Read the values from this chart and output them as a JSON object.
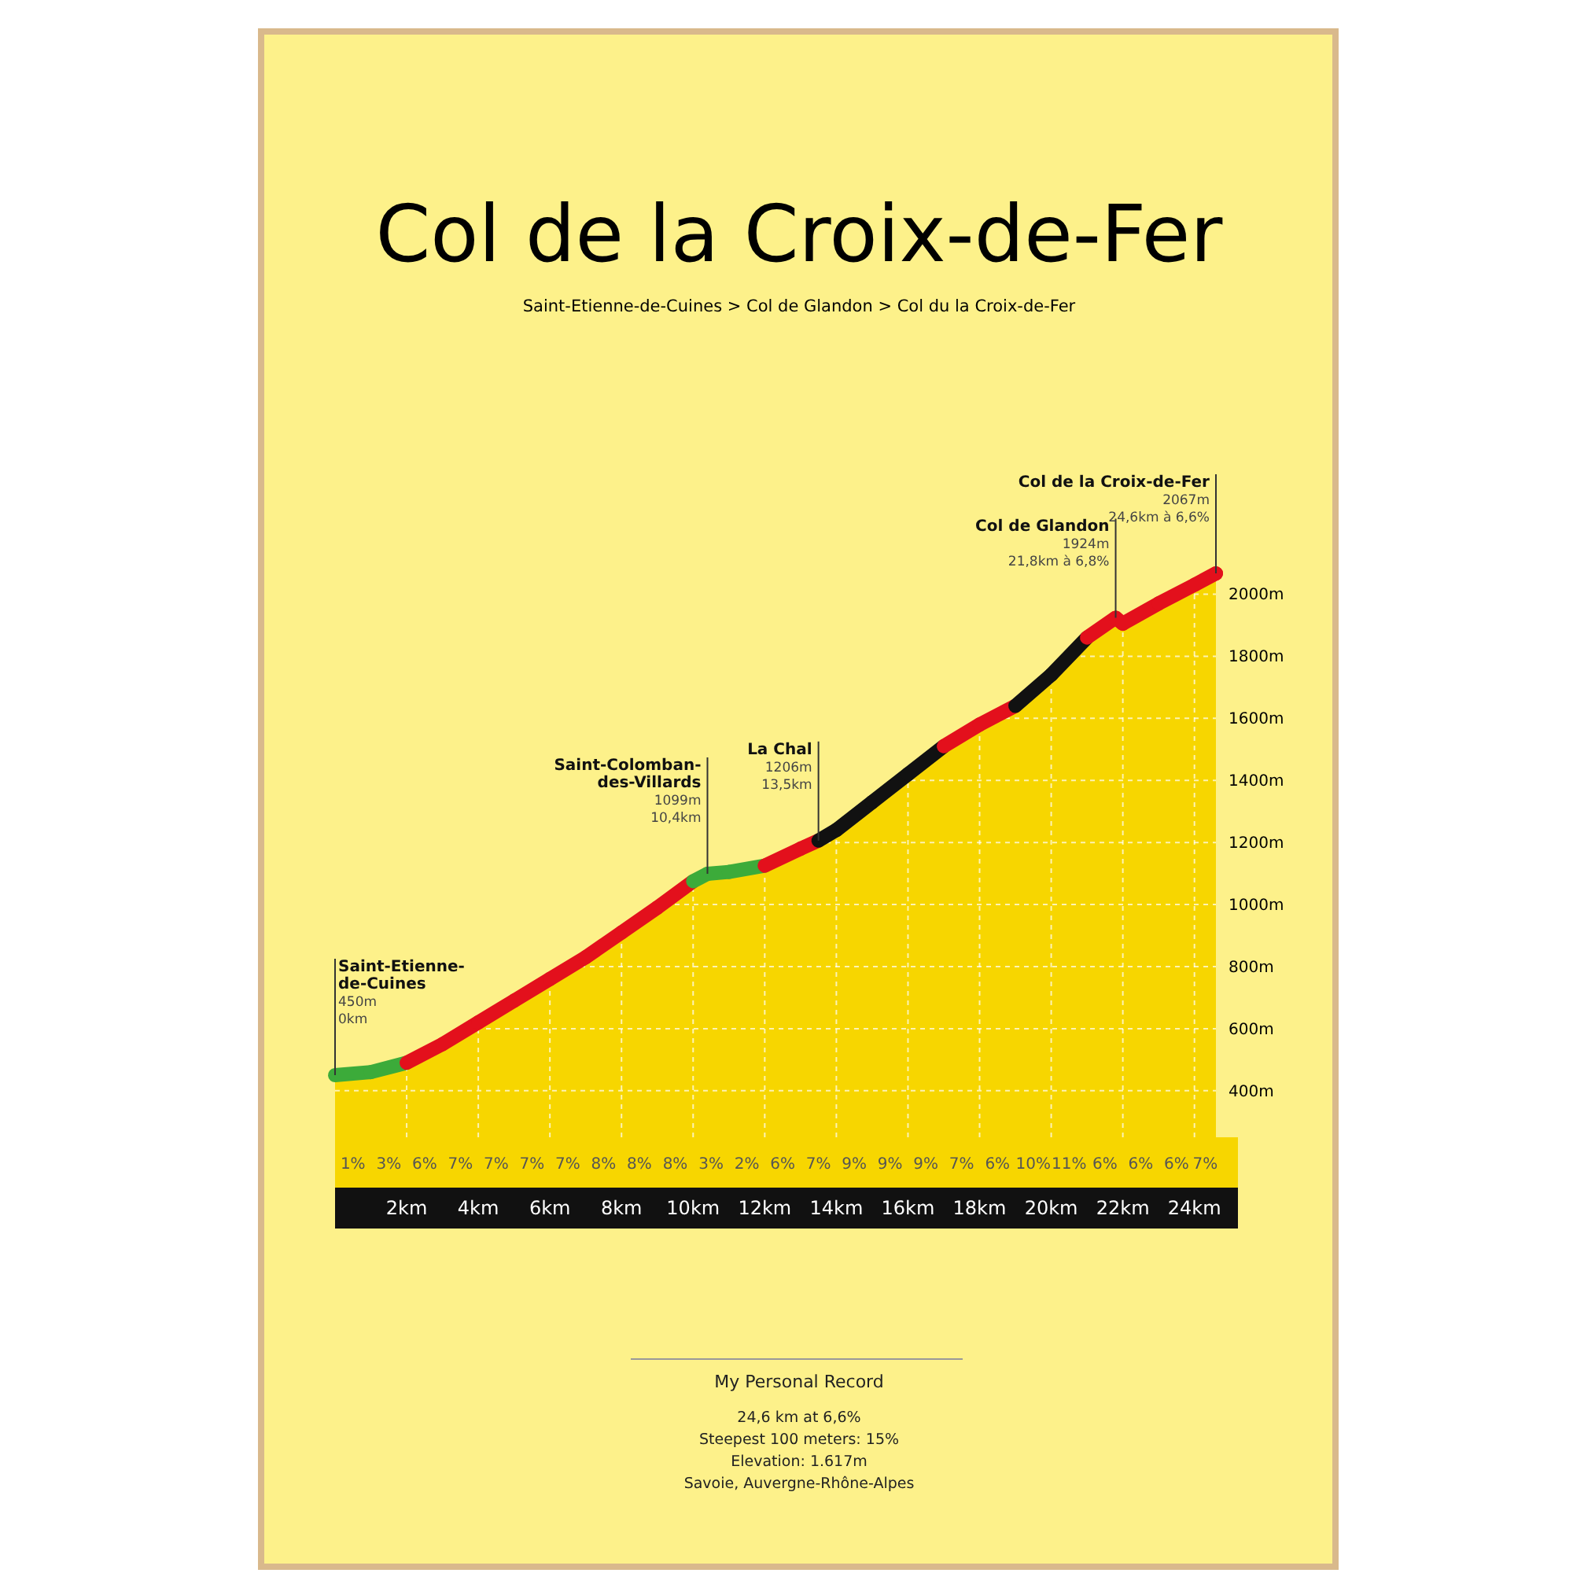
{
  "chart_data": {
    "type": "area",
    "title": "Col de la Croix-de-Fer",
    "subtitle": "Saint-Etienne-de-Cuines > Col de Glandon > Col du la Croix-de-Fer",
    "x": [
      0,
      1,
      2,
      3,
      4,
      5,
      6,
      7,
      8,
      9,
      10,
      10.4,
      11,
      12,
      13,
      13.5,
      14,
      15,
      16,
      17,
      18,
      19,
      20,
      21,
      21.8,
      22,
      23,
      24,
      24.6
    ],
    "series": [
      {
        "color": "#f7d600",
        "values": [
          450,
          460,
          490,
          550,
          620,
          690,
          760,
          830,
          910,
          990,
          1075,
          1099,
          1105,
          1125,
          1180,
          1206,
          1240,
          1330,
          1420,
          1510,
          1580,
          1640,
          1740,
          1860,
          1924,
          1905,
          1970,
          2030,
          2067
        ],
        "colors": [
          "#3cab3a",
          "#3cab3a",
          "#e3101c",
          "#e3101c",
          "#e3101c",
          "#e3101c",
          "#e3101c",
          "#e3101c",
          "#e3101c",
          "#e3101c",
          "#3cab3a",
          "#3cab3a",
          "#3cab3a",
          "#e3101c",
          "#e3101c",
          "#111111",
          "#111111",
          "#111111",
          "#111111",
          "#e3101c",
          "#e3101c",
          "#111111",
          "#111111",
          "#e3101c",
          "#e3101c",
          "#e3101c",
          "#e3101c",
          "#e3101c",
          "#e3101c"
        ]
      }
    ],
    "xlim": [
      0,
      24.6
    ],
    "ylim": [
      250,
      2100
    ],
    "xticks": [
      {
        "value": 2,
        "label": "2km"
      },
      {
        "value": 4,
        "label": "4km"
      },
      {
        "value": 6,
        "label": "6km"
      },
      {
        "value": 8,
        "label": "8km"
      },
      {
        "value": 10,
        "label": "10km"
      },
      {
        "value": 12,
        "label": "12km"
      },
      {
        "value": 14,
        "label": "14km"
      },
      {
        "value": 16,
        "label": "16km"
      },
      {
        "value": 18,
        "label": "18km"
      },
      {
        "value": 20,
        "label": "20km"
      },
      {
        "value": 22,
        "label": "22km"
      },
      {
        "value": 24,
        "label": "24km"
      }
    ],
    "yticks": [
      {
        "value": 400,
        "label": "400m"
      },
      {
        "value": 600,
        "label": "600m"
      },
      {
        "value": 800,
        "label": "800m"
      },
      {
        "value": 1000,
        "label": "1000m"
      },
      {
        "value": 1200,
        "label": "1200m"
      },
      {
        "value": 1400,
        "label": "1400m"
      },
      {
        "value": 1600,
        "label": "1600m"
      },
      {
        "value": 1800,
        "label": "1800m"
      },
      {
        "value": 2000,
        "label": "2000m"
      }
    ],
    "grid": true,
    "annotations": [
      {
        "text": "Saint-Etienne-\nde-Cuines\n450m\n0km",
        "x": 0,
        "y": 450
      },
      {
        "text": "Saint-Colomban-\ndes-Villards\n1099m\n10,4km",
        "x": 10.4,
        "y": 1099
      },
      {
        "text": "La Chal\n1206m\n13,5km",
        "x": 13.5,
        "y": 1206
      },
      {
        "text": "Col de Glandon\n1924m\n21,8km à 6,8%",
        "x": 21.8,
        "y": 1924
      },
      {
        "text": "Col de la Croix-de-Fer\n2067m\n24,6km à 6,6%",
        "x": 24.6,
        "y": 2067
      },
      "1%",
      "3%",
      "6%",
      "7%",
      "7%",
      "7%",
      "7%",
      "8%",
      "8%",
      "8%",
      "3%",
      "2%",
      "6%",
      "7%",
      "9%",
      "9%",
      "9%",
      "7%",
      "6%",
      "10%",
      "11%",
      "6%",
      "6%",
      "6%",
      "7%",
      "My Personal Record",
      "24,6 km at 6,6%",
      "Steepest 100 meters: 15%",
      "Elevation: 1.617m",
      "Savoie, Auvergne-Rhône-Alpes"
    ]
  }
}
